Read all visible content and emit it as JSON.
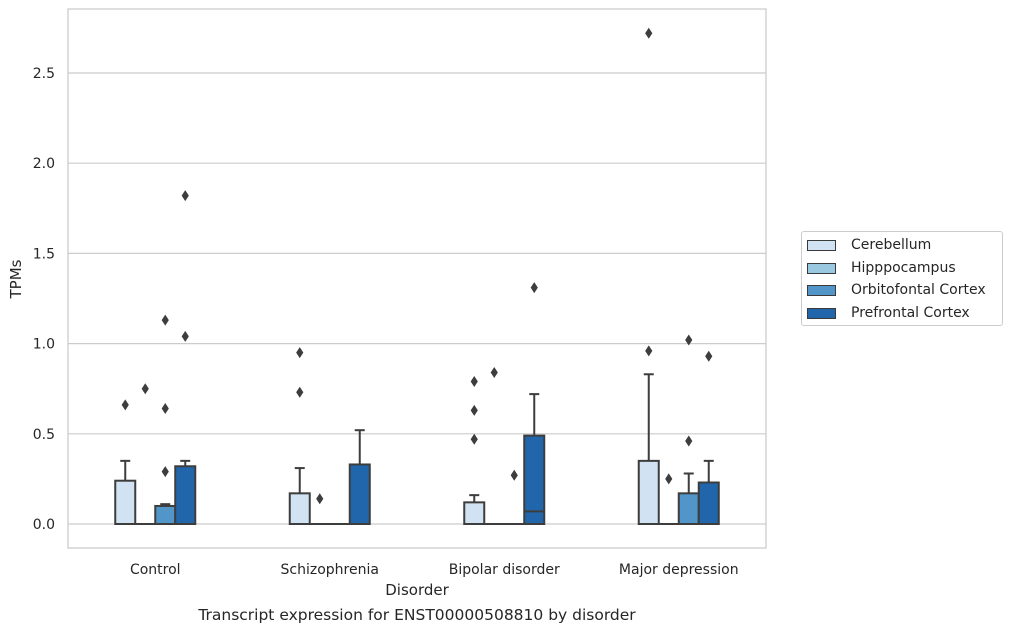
{
  "caption": "Transcript expression for ENST00000508810 by disorder",
  "chart_data": {
    "type": "box",
    "xlabel": "Disorder",
    "ylabel": "TPMs",
    "ylim": [
      -0.13,
      2.87
    ],
    "yticks": [
      "0.0",
      "0.5",
      "1.0",
      "1.5",
      "2.0",
      "2.5"
    ],
    "grid": true,
    "legend_position": "right",
    "categories": [
      "Control",
      "Schizophrenia",
      "Bipolar disorder",
      "Major depression"
    ],
    "series": [
      {
        "name": "Cerebellum",
        "color": "#d1e2f2",
        "boxes": [
          {
            "q1": 0.0,
            "median": 0.0,
            "q3": 0.24,
            "whisker_low": 0.0,
            "whisker_high": 0.35,
            "outliers": [
              0.66
            ]
          },
          {
            "q1": 0.0,
            "median": 0.0,
            "q3": 0.17,
            "whisker_low": 0.0,
            "whisker_high": 0.31,
            "outliers": [
              0.73,
              0.95
            ]
          },
          {
            "q1": 0.0,
            "median": 0.0,
            "q3": 0.12,
            "whisker_low": 0.0,
            "whisker_high": 0.16,
            "outliers": [
              0.47,
              0.63,
              0.79
            ]
          },
          {
            "q1": 0.0,
            "median": 0.0,
            "q3": 0.35,
            "whisker_low": 0.0,
            "whisker_high": 0.83,
            "outliers": [
              0.96,
              2.72
            ]
          }
        ]
      },
      {
        "name": "Hipppocampus",
        "color": "#9ac8e1",
        "boxes": [
          {
            "q1": 0.0,
            "median": 0.0,
            "q3": 0.0,
            "whisker_low": 0.0,
            "whisker_high": 0.0,
            "outliers": [
              0.75
            ]
          },
          {
            "q1": 0.0,
            "median": 0.0,
            "q3": 0.0,
            "whisker_low": 0.0,
            "whisker_high": 0.0,
            "outliers": [
              0.14
            ]
          },
          {
            "q1": 0.0,
            "median": 0.0,
            "q3": 0.0,
            "whisker_low": 0.0,
            "whisker_high": 0.0,
            "outliers": [
              0.84
            ]
          },
          {
            "q1": 0.0,
            "median": 0.0,
            "q3": 0.0,
            "whisker_low": 0.0,
            "whisker_high": 0.0,
            "outliers": [
              0.25
            ]
          }
        ]
      },
      {
        "name": "Orbitofontal Cortex",
        "color": "#5296c9",
        "boxes": [
          {
            "q1": 0.0,
            "median": 0.0,
            "q3": 0.1,
            "whisker_low": 0.0,
            "whisker_high": 0.11,
            "outliers": [
              0.29,
              0.64,
              1.13
            ]
          },
          {
            "q1": 0.0,
            "median": 0.0,
            "q3": 0.0,
            "whisker_low": 0.0,
            "whisker_high": 0.0,
            "outliers": []
          },
          {
            "q1": 0.0,
            "median": 0.0,
            "q3": 0.0,
            "whisker_low": 0.0,
            "whisker_high": 0.0,
            "outliers": [
              0.27
            ]
          },
          {
            "q1": 0.0,
            "median": 0.0,
            "q3": 0.17,
            "whisker_low": 0.0,
            "whisker_high": 0.28,
            "outliers": [
              0.46,
              1.02
            ]
          }
        ]
      },
      {
        "name": "Prefrontal Cortex",
        "color": "#2166ab",
        "boxes": [
          {
            "q1": 0.0,
            "median": 0.0,
            "q3": 0.32,
            "whisker_low": 0.0,
            "whisker_high": 0.35,
            "outliers": [
              1.04,
              1.82
            ]
          },
          {
            "q1": 0.0,
            "median": 0.0,
            "q3": 0.33,
            "whisker_low": 0.0,
            "whisker_high": 0.52,
            "outliers": []
          },
          {
            "q1": 0.0,
            "median": 0.07,
            "q3": 0.49,
            "whisker_low": 0.0,
            "whisker_high": 0.72,
            "outliers": [
              1.31
            ]
          },
          {
            "q1": 0.0,
            "median": 0.0,
            "q3": 0.23,
            "whisker_low": 0.0,
            "whisker_high": 0.35,
            "outliers": [
              0.93
            ]
          }
        ]
      }
    ]
  }
}
